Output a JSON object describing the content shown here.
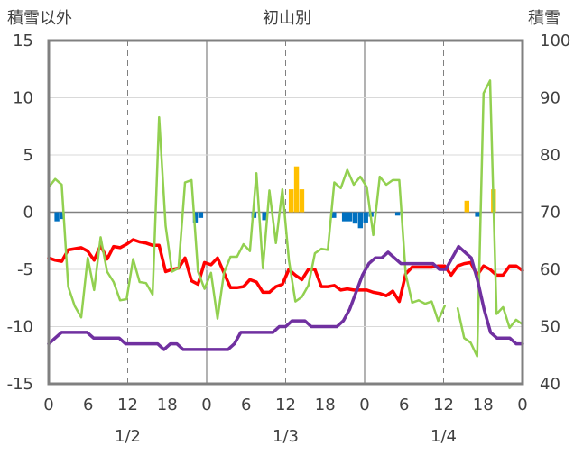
{
  "chart_data": {
    "type": "line",
    "title": "初山別",
    "ylabel_left": "積雪以外",
    "ylabel_right": "積雪",
    "ylim_left": [
      -15,
      15
    ],
    "ylim_right": [
      40,
      100
    ],
    "yticks_left": [
      "15",
      "10",
      "5",
      "0",
      "-5",
      "-10",
      "-15"
    ],
    "yticks_right": [
      "100",
      "90",
      "80",
      "70",
      "60",
      "50",
      "40"
    ],
    "xlim": [
      0,
      72
    ],
    "xticks": [
      "0",
      "6",
      "12",
      "18",
      "0",
      "6",
      "12",
      "18",
      "0",
      "6",
      "12",
      "18",
      "0"
    ],
    "date_labels": [
      "1/2",
      "1/3",
      "1/4"
    ],
    "grid": "vertical day lines (solid) and 12h lines (dashed)",
    "series": [
      {
        "key": "temperature",
        "color": "#ff0000",
        "axis": "left",
        "values": [
          -4.0,
          -4.2,
          -4.3,
          -3.3,
          -3.2,
          -3.1,
          -3.4,
          -4.2,
          -2.9,
          -4.1,
          -3.0,
          -3.1,
          -2.8,
          -2.4,
          -2.6,
          -2.7,
          -2.9,
          -2.9,
          -5.2,
          -5.0,
          -4.9,
          -4.0,
          -6.0,
          -6.3,
          -4.4,
          -4.6,
          -4.0,
          -5.3,
          -6.6,
          -6.6,
          -6.5,
          -5.9,
          -6.1,
          -7.0,
          -7.0,
          -6.5,
          -6.3,
          -5.0,
          -5.5,
          -5.9,
          -5.0,
          -5.0,
          -6.5,
          -6.5,
          -6.4,
          -6.8,
          -6.7,
          -6.8,
          -6.8,
          -6.8,
          -7.0,
          -7.1,
          -7.3,
          -6.9,
          -7.8,
          -5.4,
          -4.8,
          -4.8,
          -4.8,
          -4.8,
          -4.7,
          -4.7,
          -5.5,
          -4.7,
          -4.5,
          -4.4,
          -5.5,
          -4.7,
          -5.0,
          -5.5,
          -5.5,
          -4.7,
          -4.7,
          -5.1
        ]
      },
      {
        "key": "wind",
        "color": "#92d050",
        "axis": "left",
        "values": [
          2.2,
          2.9,
          2.4,
          -6.5,
          -8.2,
          -9.2,
          -4.0,
          -6.8,
          -2.2,
          -5.2,
          -6.1,
          -7.7,
          -7.6,
          -4.1,
          -6.1,
          -6.2,
          -7.2,
          8.3,
          -1.2,
          -5.2,
          -4.9,
          2.6,
          2.8,
          -5.2,
          -6.7,
          -5.3,
          -9.3,
          -5.3,
          -3.9,
          -3.9,
          -2.8,
          -3.4,
          3.4,
          -4.9,
          1.9,
          -2.7,
          2.0,
          -4.2,
          -7.8,
          -7.4,
          -6.4,
          -3.6,
          -3.2,
          -3.3,
          2.6,
          2.1,
          3.7,
          2.4,
          3.1,
          2.2,
          -2.0,
          3.1,
          2.4,
          2.8,
          2.8,
          -5.4,
          -7.9,
          -7.7,
          -8.0,
          -7.8,
          -9.5,
          -8.2,
          null,
          -8.4,
          -11.0,
          -11.4,
          -12.6,
          10.4,
          11.5,
          -8.9,
          -8.3,
          -10.1,
          -9.4,
          -9.8
        ]
      },
      {
        "key": "snow_depth",
        "color": "#7030a0",
        "axis": "right",
        "values": [
          47,
          48,
          49,
          49,
          49,
          49,
          49,
          48,
          48,
          48,
          48,
          48,
          47,
          47,
          47,
          47,
          47,
          47,
          46,
          47,
          47,
          46,
          46,
          46,
          46,
          46,
          46,
          46,
          46,
          47,
          49,
          49,
          49,
          49,
          49,
          49,
          50,
          50,
          51,
          51,
          51,
          50,
          50,
          50,
          50,
          50,
          51,
          53,
          56,
          59,
          61,
          62,
          62,
          63,
          62,
          61,
          61,
          61,
          61,
          61,
          61,
          60,
          60,
          62,
          64,
          63,
          62,
          58,
          53,
          49,
          48,
          48,
          48,
          47,
          47
        ]
      }
    ],
    "bars": {
      "key": "snowfall",
      "colors": {
        "positive": "#ffc000",
        "negative": "#0070c0"
      },
      "axis": "left",
      "values": [
        0,
        -0.8,
        -0.6,
        0,
        0,
        0,
        0,
        0,
        0,
        0,
        0,
        0,
        0,
        0,
        0,
        0,
        0,
        0,
        0,
        0,
        0,
        0,
        0,
        0,
        0,
        0,
        0,
        -0.9,
        -0.5,
        0,
        0,
        0,
        0,
        0,
        0,
        0,
        0,
        0,
        -0.5,
        0,
        -0.7,
        0,
        0,
        0,
        0,
        2.0,
        4.0,
        2.0,
        0,
        0,
        0,
        0,
        0,
        -0.5,
        0,
        -0.8,
        -0.8,
        -1.0,
        -1.4,
        -0.9,
        -0.4,
        0,
        0,
        0,
        0,
        -0.3,
        0,
        0,
        0,
        0,
        0,
        0,
        0,
        0,
        0,
        0,
        0,
        0,
        1.0,
        0,
        -0.4,
        0,
        0,
        2.0,
        0,
        0,
        0,
        0,
        0
      ]
    }
  }
}
